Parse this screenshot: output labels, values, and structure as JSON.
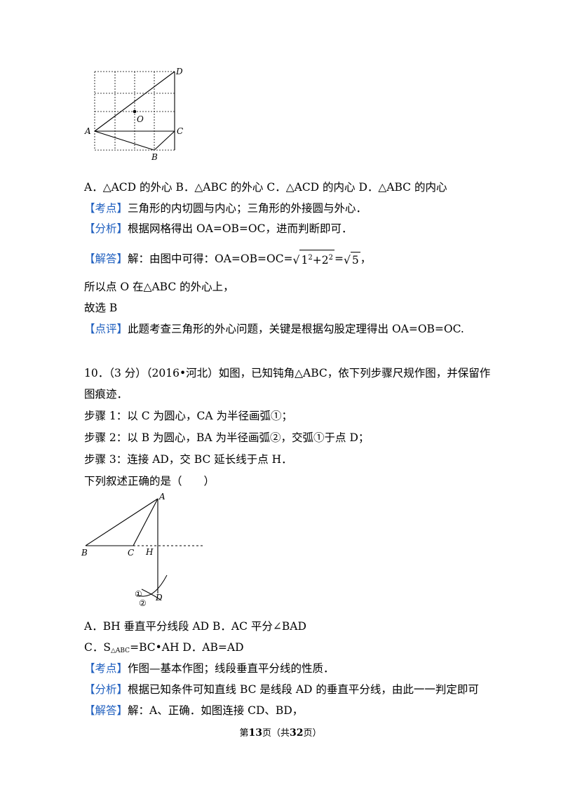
{
  "figure1": {
    "labels": {
      "A": "A",
      "B": "B",
      "C": "C",
      "D": "D",
      "O": "O"
    }
  },
  "q9": {
    "options": "A．△ACD 的外心   B．△ABC 的外心   C．△ACD 的内心   D．△ABC 的内心",
    "kaodian_tag": "【考点】",
    "kaodian_text": "三角形的内切圆与内心；三角形的外接圆与外心．",
    "fenxi_tag": "【分析】",
    "fenxi_text": "根据网格得出 OA=OB=OC，进而判断即可．",
    "jieda_tag": "【解答】",
    "jieda_prefix": "解：由图中可得：OA=OB=OC=",
    "jieda_sqrt_a": "1",
    "jieda_sqrt_b": "2",
    "jieda_exp": "2",
    "jieda_eq": "=",
    "jieda_sqrt5": "5",
    "jieda_end": "，",
    "line2": "所以点 O 在△ABC 的外心上，",
    "line3": "故选 B",
    "dianping_tag": "【点评】",
    "dianping_text": "此题考查三角形的外心问题，关键是根据勾股定理得出 OA=OB=OC."
  },
  "q10": {
    "header": "10．（3 分）（2016•河北）如图，已知钝角△ABC，依下列步骤尺规作图，并保留作",
    "header2": "图痕迹．",
    "step1": "步骤 1：以 C 为圆心，CA 为半径画弧①；",
    "step2": "步骤 2：以 B 为圆心，BA 为半径画弧②，交弧①于点 D；",
    "step3": "步骤 3：连接 AD，交 BC 延长线于点 H．",
    "question": "下列叙述正确的是（　　）",
    "figure_labels": {
      "A": "A",
      "B": "B",
      "C": "C",
      "H": "H",
      "D": "D",
      "arc1": "①",
      "arc2": "②"
    },
    "opt_ab": "A．BH 垂直平分线段 AD     B．AC 平分∠BAD",
    "opt_c_prefix": "C．S",
    "opt_c_sub": "△ABC",
    "opt_c_rest": "=BC•AH     D．AB=AD",
    "kaodian_tag": "【考点】",
    "kaodian_text": "作图—基本作图；线段垂直平分线的性质．",
    "fenxi_tag": "【分析】",
    "fenxi_text": "根据已知条件可知直线 BC 是线段 AD 的垂直平分线，由此一一判定即可",
    "jieda_tag": "【解答】",
    "jieda_text": "解：A、正确．如图连接 CD、BD，"
  },
  "footer": {
    "pre": "第",
    "page": "13",
    "mid": "页（共",
    "total": "32",
    "post": "页）"
  }
}
